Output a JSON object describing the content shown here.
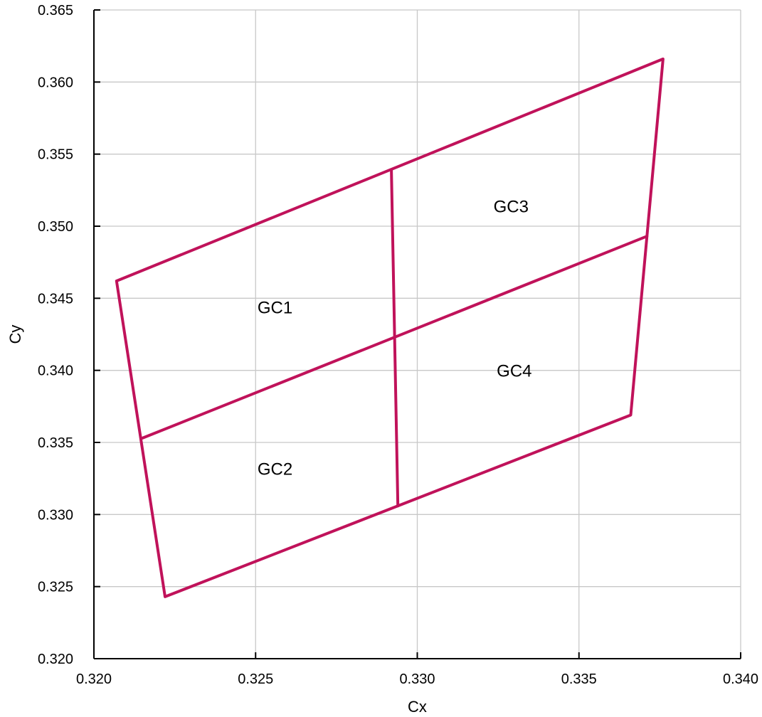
{
  "chart_data": {
    "type": "line",
    "title": "",
    "xlabel": "Cx",
    "ylabel": "Cy",
    "xlim": [
      0.32,
      0.34
    ],
    "ylim": [
      0.32,
      0.365
    ],
    "x_ticks": [
      "0.320",
      "0.325",
      "0.330",
      "0.335",
      "0.340"
    ],
    "y_ticks": [
      "0.320",
      "0.325",
      "0.330",
      "0.335",
      "0.340",
      "0.345",
      "0.350",
      "0.355",
      "0.360",
      "0.365"
    ],
    "grid": true,
    "line_color": "#c0125a",
    "series": [
      {
        "x": [
          0.3207,
          0.3376,
          0.3366,
          0.3222,
          0.3207
        ],
        "y": [
          0.3462,
          0.3616,
          0.3369,
          0.3243,
          0.3462
        ]
      },
      {
        "x": [
          0.3215,
          0.3371
        ],
        "y": [
          0.3353,
          0.3493
        ]
      },
      {
        "x": [
          0.3292,
          0.3294
        ],
        "y": [
          0.3539,
          0.3306
        ]
      }
    ],
    "annotations": [
      {
        "text": "GC1",
        "x": 0.3256,
        "y": 0.3444
      },
      {
        "text": "GC2",
        "x": 0.3256,
        "y": 0.3332
      },
      {
        "text": "GC3",
        "x": 0.3329,
        "y": 0.3514
      },
      {
        "text": "GC4",
        "x": 0.333,
        "y": 0.34
      }
    ]
  }
}
